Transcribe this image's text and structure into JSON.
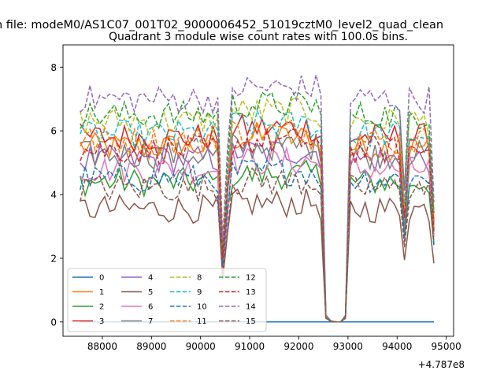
{
  "chart_data": {
    "type": "line",
    "suptitle": "n file: modeM0/AS1C07_001T02_9000006452_51019cztM0_level2_quad_clean",
    "title": "Quadrant 3 module wise count rates with 100.0s bins.",
    "xlabel": "",
    "ylabel": "",
    "offset_label": "+4.787e8",
    "xlim": [
      87200,
      95150
    ],
    "ylim": [
      -0.45,
      8.7
    ],
    "xticks": [
      88000,
      89000,
      90000,
      91000,
      92000,
      93000,
      94000,
      95000
    ],
    "xtick_labels": [
      "88000",
      "89000",
      "90000",
      "91000",
      "92000",
      "93000",
      "94000",
      "95000"
    ],
    "yticks": [
      0,
      2,
      4,
      6,
      8
    ],
    "ytick_labels": [
      "0",
      "2",
      "4",
      "6",
      "8"
    ],
    "grid": false,
    "legend_position": "lower-left",
    "x": [
      87550,
      87650,
      87750,
      87850,
      87950,
      88050,
      88150,
      88250,
      88350,
      88450,
      88550,
      88650,
      88750,
      88850,
      88950,
      89050,
      89150,
      89250,
      89350,
      89450,
      89550,
      89650,
      89750,
      89850,
      89950,
      90050,
      90150,
      90250,
      90350,
      90450,
      90550,
      90650,
      90750,
      90850,
      90950,
      91050,
      91150,
      91250,
      91350,
      91450,
      91550,
      91650,
      91750,
      91850,
      91950,
      92050,
      92150,
      92250,
      92350,
      92450,
      92550,
      92650,
      92750,
      92850,
      92950,
      93050,
      93150,
      93250,
      93350,
      93450,
      93550,
      93650,
      93750,
      93850,
      93950,
      94050,
      94150,
      94250,
      94350,
      94450,
      94550,
      94650,
      94750
    ],
    "gap_shape": [
      1,
      1,
      1,
      1,
      1,
      1,
      1,
      1,
      1,
      1,
      1,
      1,
      1,
      1,
      1,
      1,
      1,
      1,
      1,
      1,
      1,
      1,
      1,
      1,
      1,
      1,
      1,
      1,
      1,
      0.35,
      0.75,
      1,
      1,
      1,
      1,
      1,
      1,
      1,
      1,
      1,
      1,
      1,
      1,
      1,
      1,
      1,
      1,
      1,
      1,
      0.96,
      0.03,
      0.005,
      0,
      0,
      0.03,
      1,
      1,
      1,
      1,
      1,
      1,
      1,
      1,
      1,
      1,
      1,
      0.6,
      1,
      1,
      1,
      1,
      1,
      0.55
    ],
    "series": [
      {
        "name": "0",
        "color": "#1f77b4",
        "dash": "solid",
        "base": 0
      },
      {
        "name": "1",
        "color": "#ff7f0e",
        "dash": "solid",
        "base": 5.5
      },
      {
        "name": "2",
        "color": "#2ca02c",
        "dash": "solid",
        "base": 4.4
      },
      {
        "name": "3",
        "color": "#d62728",
        "dash": "solid",
        "base": 5.8
      },
      {
        "name": "4",
        "color": "#9467bd",
        "dash": "solid",
        "base": 5.1
      },
      {
        "name": "5",
        "color": "#8c564b",
        "dash": "solid",
        "base": 3.55
      },
      {
        "name": "6",
        "color": "#e377c2",
        "dash": "solid",
        "base": 4.8
      },
      {
        "name": "7",
        "color": "#7f7f7f",
        "dash": "solid",
        "base": 5.25
      },
      {
        "name": "8",
        "color": "#bcbd22",
        "dash": "dashed",
        "base": 6.3
      },
      {
        "name": "9",
        "color": "#17becf",
        "dash": "dashed",
        "base": 5.9
      },
      {
        "name": "10",
        "color": "#1f77b4",
        "dash": "dashed",
        "base": 4.5
      },
      {
        "name": "11",
        "color": "#ff7f0e",
        "dash": "dashed",
        "base": 5.7
      },
      {
        "name": "12",
        "color": "#2ca02c",
        "dash": "dashed",
        "base": 6.5
      },
      {
        "name": "13",
        "color": "#d62728",
        "dash": "dashed",
        "base": 5.4
      },
      {
        "name": "14",
        "color": "#9467bd",
        "dash": "dashed",
        "base": 7.0
      },
      {
        "name": "15",
        "color": "#8c564b",
        "dash": "dashed",
        "base": 4.2
      }
    ]
  }
}
